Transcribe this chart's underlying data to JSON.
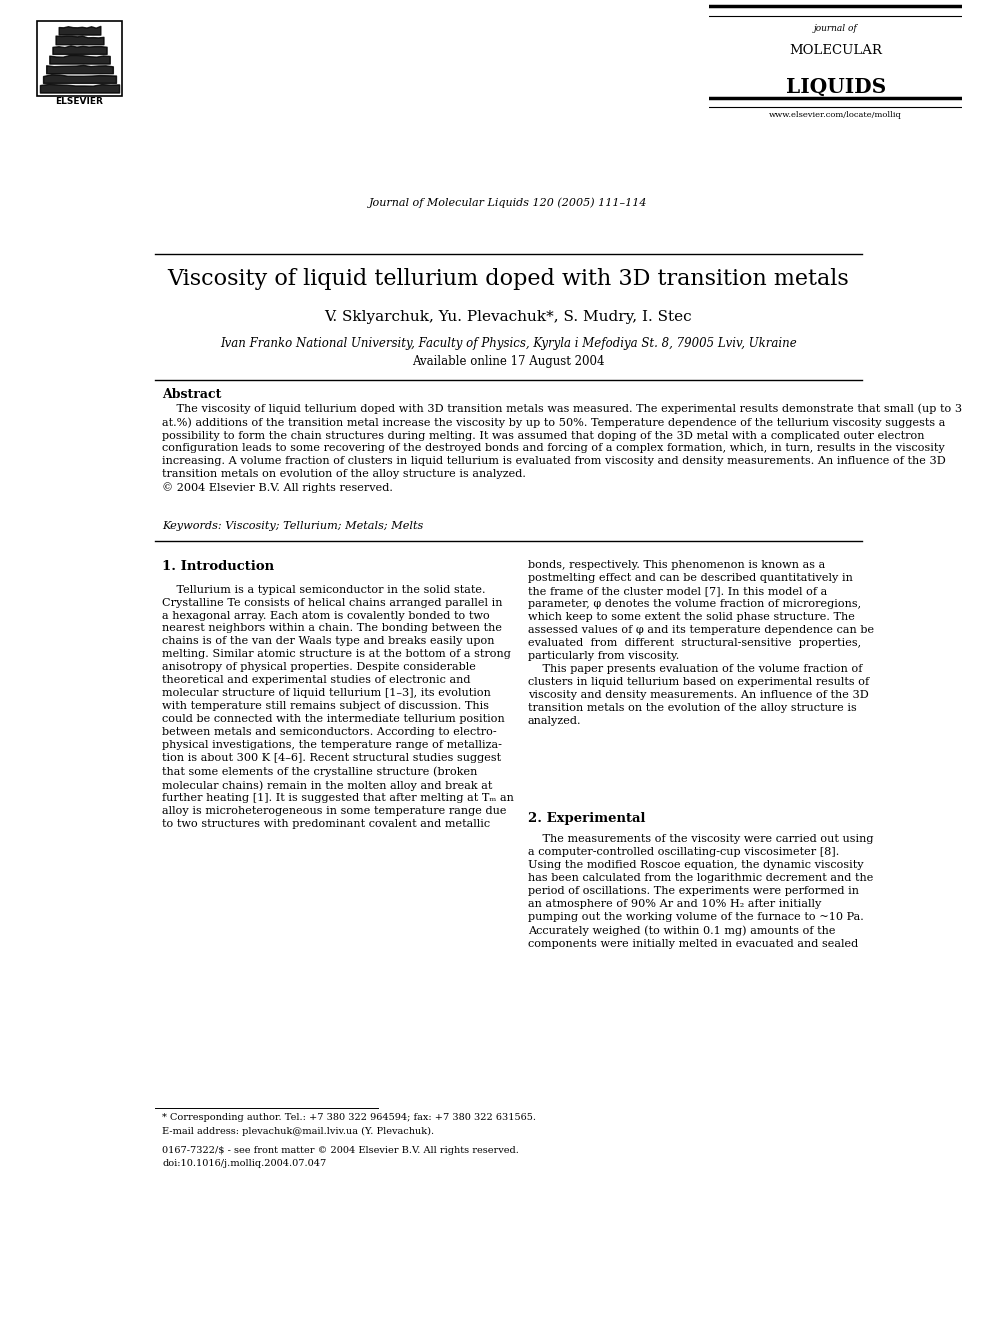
{
  "title": "Viscosity of liquid tellurium doped with 3D transition metals",
  "authors": "V. Sklyarchuk, Yu. Plevachuk*, S. Mudry, I. Stec",
  "affiliation": "Ivan Franko National University, Faculty of Physics, Kyryla i Mefodiya St. 8, 79005 Lviv, Ukraine",
  "available_online": "Available online 17 August 2004",
  "journal_line": "Journal of Molecular Liquids 120 (2005) 111–114",
  "journal_name_line1": "journal of",
  "journal_name_line2": "MOLECULAR",
  "journal_name_line3": "LIQUIDS",
  "website": "www.elsevier.com/locate/molliq",
  "elsevier_text": "ELSEVIER",
  "abstract_title": "Abstract",
  "keywords_text": "Keywords: Viscosity; Tellurium; Metals; Melts",
  "section1_title": "1. Introduction",
  "section2_title": "2. Experimental",
  "footnote_star": "* Corresponding author. Tel.: +7 380 322 964594; fax: +7 380 322 631565.",
  "footnote_email": "E-mail address: plevachuk@mail.lviv.ua (Y. Plevachuk).",
  "footer_issn": "0167-7322/$ - see front matter © 2004 Elsevier B.V. All rights reserved.",
  "footer_doi": "doi:10.1016/j.molliq.2004.07.047",
  "bg_color": "#ffffff",
  "text_color": "#000000"
}
